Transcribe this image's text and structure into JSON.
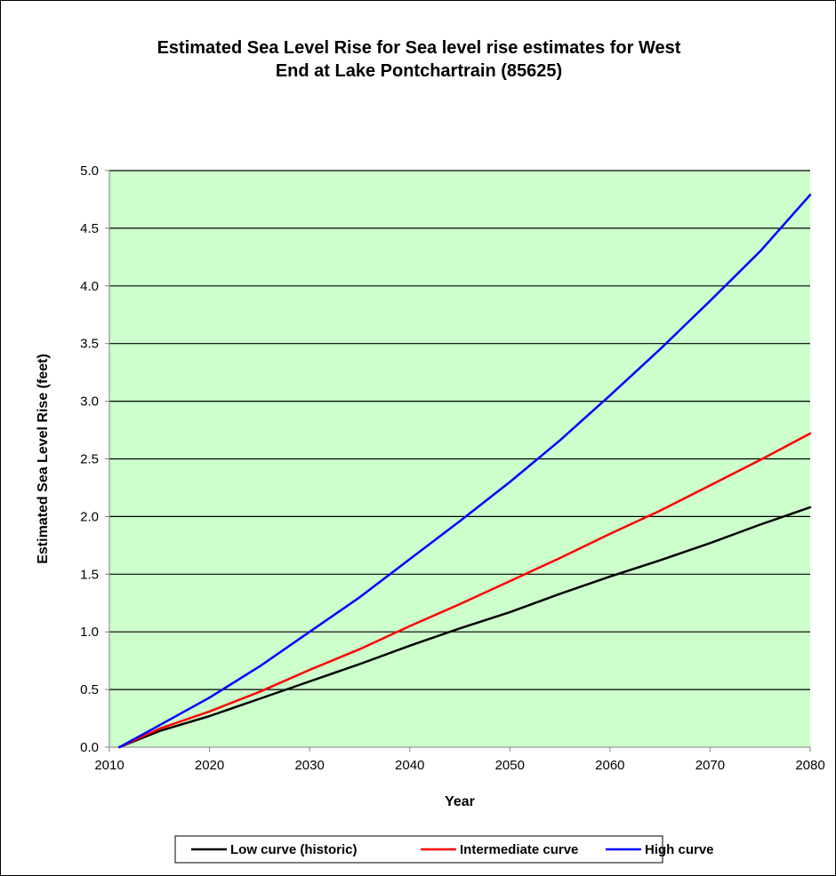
{
  "chart_data": {
    "type": "line",
    "title_lines": [
      "Estimated Sea Level Rise for Sea level rise estimates for West",
      "End at Lake Pontchartrain (85625)"
    ],
    "xlabel": "Year",
    "ylabel": "Estimated Sea Level Rise (feet)",
    "xlim": [
      2010,
      2080
    ],
    "ylim": [
      0.0,
      5.0
    ],
    "x_ticks": [
      2010,
      2020,
      2030,
      2040,
      2050,
      2060,
      2070,
      2080
    ],
    "x_tick_labels": [
      "2010",
      "2020",
      "2030",
      "2040",
      "2050",
      "2060",
      "2070",
      "2080"
    ],
    "y_ticks": [
      0.0,
      0.5,
      1.0,
      1.5,
      2.0,
      2.5,
      3.0,
      3.5,
      4.0,
      4.5,
      5.0
    ],
    "y_tick_labels": [
      "0.0",
      "0.5",
      "1.0",
      "1.5",
      "2.0",
      "2.5",
      "3.0",
      "3.5",
      "4.0",
      "4.5",
      "5.0"
    ],
    "grid": "horizontal",
    "legend_position": "bottom",
    "plot_background": "#ccffcc",
    "x": [
      2011,
      2015,
      2020,
      2025,
      2030,
      2035,
      2040,
      2045,
      2050,
      2055,
      2060,
      2065,
      2070,
      2075,
      2080
    ],
    "series": [
      {
        "name": "Low curve (historic)",
        "color": "#000000",
        "values": [
          0.0,
          0.14,
          0.27,
          0.42,
          0.57,
          0.72,
          0.88,
          1.03,
          1.17,
          1.33,
          1.48,
          1.62,
          1.77,
          1.93,
          2.08
        ]
      },
      {
        "name": "Intermediate curve",
        "color": "#ff0000",
        "values": [
          0.0,
          0.16,
          0.31,
          0.48,
          0.67,
          0.85,
          1.05,
          1.24,
          1.44,
          1.64,
          1.85,
          2.05,
          2.27,
          2.49,
          2.72
        ]
      },
      {
        "name": "High curve",
        "color": "#0000ff",
        "values": [
          0.0,
          0.19,
          0.43,
          0.7,
          1.0,
          1.3,
          1.63,
          1.96,
          2.3,
          2.66,
          3.05,
          3.45,
          3.87,
          4.3,
          4.79
        ]
      }
    ]
  }
}
